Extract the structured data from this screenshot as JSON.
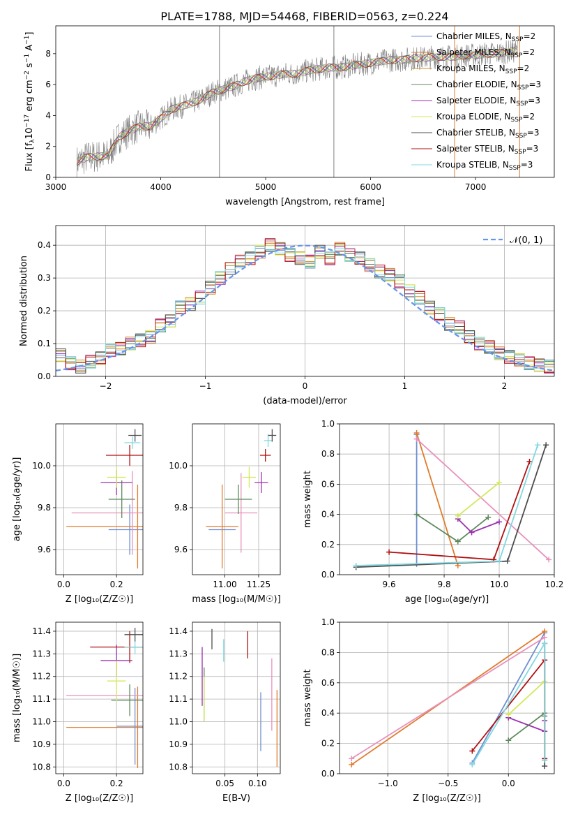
{
  "figure_title": "PLATE=1788, MJD=54468, FIBERID=0563, z=0.224",
  "model_colors": [
    "#6f8fd0",
    "#e07b2b",
    "#c89030",
    "#5d8a5d",
    "#9b30b0",
    "#d2e85a",
    "#4d4d4d",
    "#b01010",
    "#80d8e0"
  ],
  "chart_data": [
    {
      "id": "spectrum",
      "type": "line",
      "xlabel": "wavelength [Angstrom, rest frame]",
      "ylabel_parts": [
        "Flux [f",
        "λ",
        "10",
        "−17",
        " erg cm",
        "−2",
        " s",
        "−1",
        " A",
        "−1",
        "]"
      ],
      "xlim": [
        3000,
        7750
      ],
      "ylim": [
        0,
        9.8
      ],
      "xticks": [
        3000,
        4000,
        5000,
        6000,
        7000
      ],
      "yticks": [
        0,
        2,
        4,
        6,
        8
      ],
      "grid": false,
      "legend_position": "top-right",
      "x": [
        3200,
        3300,
        3400,
        3500,
        3550,
        3600,
        3700,
        3800,
        3900,
        4000,
        4100,
        4200,
        4300,
        4400,
        4500,
        4600,
        4700,
        4800,
        4900,
        5000,
        5100,
        5200,
        5300,
        5400,
        5500,
        5600,
        5700,
        5800,
        5900,
        6000,
        6100,
        6200,
        6300,
        6400,
        6500,
        6600,
        6700,
        6800,
        6900,
        7000,
        7100,
        7200,
        7300,
        7400
      ],
      "model_flux": [
        1.0,
        1.3,
        1.35,
        1.4,
        2.0,
        2.6,
        3.0,
        3.3,
        3.3,
        3.8,
        4.4,
        4.6,
        4.8,
        5.1,
        5.5,
        5.7,
        5.9,
        6.2,
        6.4,
        6.5,
        6.6,
        6.7,
        6.7,
        6.9,
        7.0,
        7.1,
        7.1,
        7.2,
        7.3,
        7.4,
        7.5,
        7.6,
        7.6,
        7.7,
        7.7,
        7.8,
        7.8,
        7.8,
        7.9,
        7.9,
        8.0,
        8.0,
        8.1,
        8.2
      ],
      "legend": [
        {
          "label": "Chabrier MILES, N",
          "sub": "SSP",
          "suffix": "=2"
        },
        {
          "label": "Salpeter MILES, N",
          "sub": "SSP",
          "suffix": "=2"
        },
        {
          "label": "Kroupa MILES, N",
          "sub": "SSP",
          "suffix": "=2"
        },
        {
          "label": "Chabrier ELODIE, N",
          "sub": "SSP",
          "suffix": "=3"
        },
        {
          "label": "Salpeter ELODIE, N",
          "sub": "SSP",
          "suffix": "=3"
        },
        {
          "label": "Kroupa ELODIE, N",
          "sub": "SSP",
          "suffix": "=2"
        },
        {
          "label": "Chabrier STELIB, N",
          "sub": "SSP",
          "suffix": "=3"
        },
        {
          "label": "Salpeter STELIB, N",
          "sub": "SSP",
          "suffix": "=3"
        },
        {
          "label": "Kroupa STELIB, N",
          "sub": "SSP",
          "suffix": "=3"
        }
      ]
    },
    {
      "id": "residuals",
      "type": "histogram",
      "xlabel": "(data-model)/error",
      "ylabel": "Normed distribution",
      "xlim": [
        -2.5,
        2.5
      ],
      "ylim": [
        0,
        0.46
      ],
      "xticks": [
        -2,
        -1,
        0,
        1,
        2
      ],
      "yticks": [
        0.0,
        0.1,
        0.2,
        0.3,
        0.4
      ],
      "grid": true,
      "legend_position": "top-right",
      "bin_edges_start": -2.5,
      "bin_width": 0.1,
      "curve_label": "𝒩(0, 1)",
      "curve_color": "#6495ed",
      "hist_values": [
        0.065,
        0.04,
        0.03,
        0.045,
        0.055,
        0.08,
        0.085,
        0.1,
        0.11,
        0.12,
        0.155,
        0.17,
        0.21,
        0.22,
        0.24,
        0.27,
        0.3,
        0.33,
        0.35,
        0.36,
        0.38,
        0.4,
        0.39,
        0.37,
        0.36,
        0.35,
        0.38,
        0.36,
        0.39,
        0.37,
        0.36,
        0.34,
        0.32,
        0.31,
        0.29,
        0.26,
        0.24,
        0.21,
        0.19,
        0.16,
        0.15,
        0.12,
        0.1,
        0.09,
        0.07,
        0.06,
        0.05,
        0.04,
        0.035,
        0.03
      ]
    },
    {
      "id": "age-vs-z",
      "type": "errorbar",
      "xlabel": "Z [log₁₀(Z/Z☉)]",
      "ylabel": "age  [log₁₀(age/yr)]",
      "xlim": [
        -0.03,
        0.3
      ],
      "ylim": [
        9.48,
        10.2
      ],
      "xticks": [
        0.0,
        0.2
      ],
      "yticks": [
        9.6,
        9.8,
        10.0
      ],
      "grid": true,
      "points": [
        {
          "x": 0.25,
          "y": 9.695,
          "xerr": 0.08,
          "yerr": 0.12,
          "color": "#6f8fd0"
        },
        {
          "x": 0.28,
          "y": 9.71,
          "xerr": 0.27,
          "yerr": 0.2,
          "color": "#e07b2b"
        },
        {
          "x": 0.26,
          "y": 9.775,
          "xerr": 0.23,
          "yerr": 0.2,
          "color": "#e891bb"
        },
        {
          "x": 0.22,
          "y": 9.84,
          "xerr": 0.05,
          "yerr": 0.09,
          "color": "#5d8a5d"
        },
        {
          "x": 0.2,
          "y": 9.92,
          "xerr": 0.06,
          "yerr": 0.06,
          "color": "#9b30b0"
        },
        {
          "x": 0.2,
          "y": 9.945,
          "xerr": 0.035,
          "yerr": 0.05,
          "color": "#d2e85a"
        },
        {
          "x": 0.25,
          "y": 10.05,
          "xerr": 0.09,
          "yerr": 0.05,
          "color": "#b01010"
        },
        {
          "x": 0.26,
          "y": 10.11,
          "xerr": 0.03,
          "yerr": 0.03,
          "color": "#80d8e0"
        },
        {
          "x": 0.27,
          "y": 10.145,
          "xerr": 0.025,
          "yerr": 0.03,
          "color": "#4d4d4d"
        }
      ]
    },
    {
      "id": "age-vs-mass",
      "type": "errorbar",
      "xlabel": "mass [log₁₀(M/M☉)]",
      "ylabel": "",
      "xlim": [
        10.76,
        11.41
      ],
      "ylim": [
        9.48,
        10.2
      ],
      "xticks": [
        11.0,
        11.25
      ],
      "yticks": [
        9.6,
        9.8,
        10.0
      ],
      "grid": true,
      "points": [
        {
          "x": 10.98,
          "y": 9.695,
          "xerr": 0.1,
          "yerr": 0.0,
          "color": "#6f8fd0"
        },
        {
          "x": 10.98,
          "y": 9.71,
          "xerr": 0.12,
          "yerr": 0.2,
          "color": "#e07b2b"
        },
        {
          "x": 11.12,
          "y": 9.775,
          "xerr": 0.12,
          "yerr": 0.19,
          "color": "#e891bb"
        },
        {
          "x": 11.1,
          "y": 9.84,
          "xerr": 0.1,
          "yerr": 0.07,
          "color": "#5d8a5d"
        },
        {
          "x": 11.27,
          "y": 9.92,
          "xerr": 0.05,
          "yerr": 0.05,
          "color": "#9b30b0"
        },
        {
          "x": 11.18,
          "y": 9.945,
          "xerr": 0.05,
          "yerr": 0.05,
          "color": "#d2e85a"
        },
        {
          "x": 11.3,
          "y": 10.05,
          "xerr": 0.04,
          "yerr": 0.03,
          "color": "#b01010"
        },
        {
          "x": 11.32,
          "y": 10.12,
          "xerr": 0.03,
          "yerr": 0.03,
          "color": "#80d8e0"
        },
        {
          "x": 11.35,
          "y": 10.145,
          "xerr": 0.03,
          "yerr": 0.03,
          "color": "#4d4d4d"
        }
      ]
    },
    {
      "id": "weight-vs-age",
      "type": "line",
      "xlabel": "age  [log₁₀(age/yr)]",
      "ylabel": "mass weight",
      "xlim": [
        9.42,
        10.2
      ],
      "ylim": [
        0,
        1.0
      ],
      "xticks": [
        9.6,
        9.8,
        10.0,
        10.2
      ],
      "yticks": [
        0.0,
        0.2,
        0.4,
        0.6,
        0.8,
        1.0
      ],
      "grid": true,
      "series": [
        {
          "color": "#6f8fd0",
          "x": [
            9.7,
            9.7
          ],
          "y": [
            0.07,
            0.93
          ]
        },
        {
          "color": "#e07b2b",
          "x": [
            9.7,
            9.85
          ],
          "y": [
            0.94,
            0.06
          ]
        },
        {
          "color": "#e891bb",
          "x": [
            9.7,
            10.18
          ],
          "y": [
            0.9,
            0.1
          ]
        },
        {
          "color": "#5d8a5d",
          "x": [
            9.7,
            9.85,
            9.96
          ],
          "y": [
            0.4,
            0.22,
            0.38
          ]
        },
        {
          "color": "#9b30b0",
          "x": [
            9.85,
            9.9,
            10.0
          ],
          "y": [
            0.37,
            0.28,
            0.35
          ]
        },
        {
          "color": "#d2e85a",
          "x": [
            9.85,
            10.0
          ],
          "y": [
            0.39,
            0.61
          ]
        },
        {
          "color": "#4d4d4d",
          "x": [
            9.48,
            10.03,
            10.17
          ],
          "y": [
            0.05,
            0.09,
            0.86
          ]
        },
        {
          "color": "#b01010",
          "x": [
            9.6,
            9.98,
            10.11
          ],
          "y": [
            0.15,
            0.1,
            0.75
          ]
        },
        {
          "color": "#80d8e0",
          "x": [
            9.48,
            10.0,
            10.14
          ],
          "y": [
            0.06,
            0.09,
            0.86
          ]
        }
      ]
    },
    {
      "id": "mass-vs-z",
      "type": "errorbar",
      "xlabel": "Z [log₁₀(Z/Z☉)]",
      "ylabel": "mass [log₁₀(M/M☉)]",
      "xlim": [
        -0.03,
        0.3
      ],
      "ylim": [
        10.77,
        11.44
      ],
      "xticks": [
        0.0,
        0.2
      ],
      "yticks": [
        10.8,
        10.9,
        11.0,
        11.1,
        11.2,
        11.3,
        11.4
      ],
      "grid": true,
      "points": [
        {
          "x": 0.27,
          "y": 10.98,
          "xerr": 0.07,
          "yerr": 0.17,
          "color": "#6f8fd0"
        },
        {
          "x": 0.28,
          "y": 10.975,
          "xerr": 0.27,
          "yerr": 0.18,
          "color": "#e07b2b"
        },
        {
          "x": 0.28,
          "y": 11.115,
          "xerr": 0.27,
          "yerr": 0.0,
          "color": "#e891bb"
        },
        {
          "x": 0.25,
          "y": 11.095,
          "xerr": 0.07,
          "yerr": 0.07,
          "color": "#5d8a5d"
        },
        {
          "x": 0.2,
          "y": 11.27,
          "xerr": 0.06,
          "yerr": 0.07,
          "color": "#9b30b0"
        },
        {
          "x": 0.2,
          "y": 11.18,
          "xerr": 0.035,
          "yerr": 0.09,
          "color": "#d2e85a"
        },
        {
          "x": 0.25,
          "y": 11.33,
          "xerr": 0.15,
          "yerr": 0.07,
          "color": "#b01010"
        },
        {
          "x": 0.27,
          "y": 11.33,
          "xerr": 0.04,
          "yerr": 0.03,
          "color": "#80d8e0"
        },
        {
          "x": 0.27,
          "y": 11.385,
          "xerr": 0.04,
          "yerr": 0.03,
          "color": "#4d4d4d"
        }
      ]
    },
    {
      "id": "mass-vs-ebv",
      "type": "errorbar",
      "xlabel": "E(B-V)",
      "ylabel": "",
      "xlim": [
        0.0,
        0.135
      ],
      "ylim": [
        10.77,
        11.44
      ],
      "xticks": [
        0.05,
        0.1
      ],
      "yticks": [
        10.8,
        10.9,
        11.0,
        11.1,
        11.2,
        11.3,
        11.4
      ],
      "grid": true,
      "points": [
        {
          "x": 0.105,
          "y": 11.0,
          "xerr": 0.0,
          "yerr": 0.13,
          "color": "#6f8fd0"
        },
        {
          "x": 0.13,
          "y": 10.97,
          "xerr": 0.0,
          "yerr": 0.17,
          "color": "#e07b2b"
        },
        {
          "x": 0.122,
          "y": 11.12,
          "xerr": 0.0,
          "yerr": 0.16,
          "color": "#e891bb"
        },
        {
          "x": 0.018,
          "y": 11.12,
          "xerr": 0.0,
          "yerr": 0.12,
          "color": "#5d8a5d"
        },
        {
          "x": 0.015,
          "y": 11.2,
          "xerr": 0.0,
          "yerr": 0.13,
          "color": "#9b30b0"
        },
        {
          "x": 0.018,
          "y": 11.1,
          "xerr": 0.0,
          "yerr": 0.1,
          "color": "#d2e85a"
        },
        {
          "x": 0.085,
          "y": 11.34,
          "xerr": 0.0,
          "yerr": 0.06,
          "color": "#b01010"
        },
        {
          "x": 0.048,
          "y": 11.315,
          "xerr": 0.0,
          "yerr": 0.05,
          "color": "#80d8e0"
        },
        {
          "x": 0.03,
          "y": 11.365,
          "xerr": 0.0,
          "yerr": 0.045,
          "color": "#4d4d4d"
        }
      ]
    },
    {
      "id": "weight-vs-z",
      "type": "line",
      "xlabel": "Z [log₁₀(Z/Z☉)]",
      "ylabel": "mass weight",
      "xlim": [
        -1.4,
        0.38
      ],
      "ylim": [
        0,
        1.0
      ],
      "xticks": [
        -1.0,
        -0.5,
        0.0
      ],
      "yticks": [
        0.0,
        0.2,
        0.4,
        0.6,
        0.8,
        1.0
      ],
      "grid": true,
      "series": [
        {
          "color": "#6f8fd0",
          "x": [
            -0.3,
            0.3
          ],
          "y": [
            0.07,
            0.93
          ]
        },
        {
          "color": "#e07b2b",
          "x": [
            -1.3,
            0.3
          ],
          "y": [
            0.06,
            0.94
          ]
        },
        {
          "color": "#e891bb",
          "x": [
            -1.3,
            0.3
          ],
          "y": [
            0.1,
            0.9
          ]
        },
        {
          "color": "#5d8a5d",
          "x": [
            0.0,
            0.3,
            0.3
          ],
          "y": [
            0.22,
            0.4,
            0.38
          ]
        },
        {
          "color": "#9b30b0",
          "x": [
            0.0,
            0.3,
            0.3
          ],
          "y": [
            0.37,
            0.28,
            0.35
          ]
        },
        {
          "color": "#d2e85a",
          "x": [
            0.0,
            0.3
          ],
          "y": [
            0.39,
            0.61
          ]
        },
        {
          "color": "#4d4d4d",
          "x": [
            0.3,
            0.3,
            0.3
          ],
          "y": [
            0.09,
            0.86,
            0.05
          ]
        },
        {
          "color": "#b01010",
          "x": [
            -0.3,
            0.3,
            0.3
          ],
          "y": [
            0.15,
            0.75,
            0.1
          ]
        },
        {
          "color": "#80d8e0",
          "x": [
            -0.3,
            0.3,
            0.3
          ],
          "y": [
            0.06,
            0.86,
            0.09
          ]
        }
      ]
    }
  ]
}
